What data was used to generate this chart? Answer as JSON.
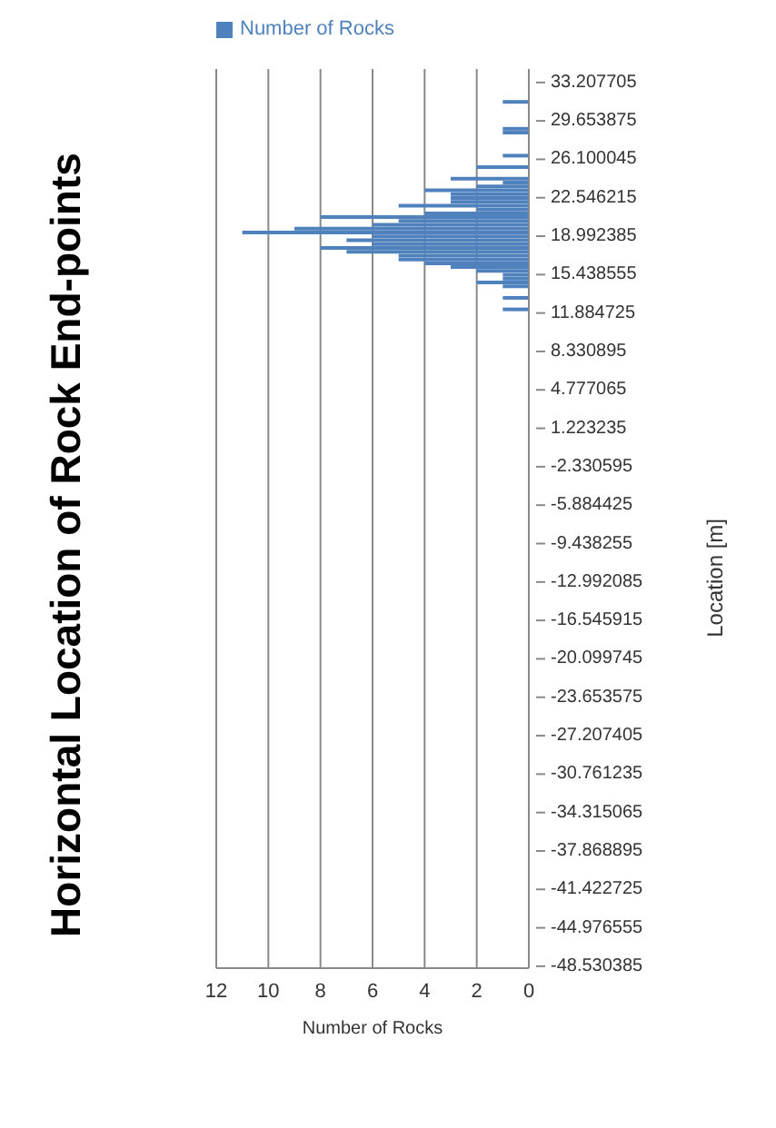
{
  "chart_data": {
    "type": "bar",
    "orientation": "horizontal",
    "title": "Horizontal Location of Rock End-points",
    "xlabel": "Number of Rocks",
    "ylabel": "Location [m]",
    "categories": [
      null,
      null,
      null,
      "33.207705",
      null,
      null,
      null,
      null,
      null,
      null,
      null,
      null,
      null,
      "29.653875",
      null,
      null,
      null,
      null,
      null,
      null,
      null,
      null,
      null,
      "26.100045",
      null,
      null,
      null,
      null,
      null,
      null,
      null,
      null,
      null,
      "22.546215",
      null,
      null,
      null,
      null,
      null,
      null,
      null,
      null,
      null,
      "18.992385",
      null,
      null,
      null,
      null,
      null,
      null,
      null,
      null,
      null,
      "15.438555",
      null,
      null,
      null,
      null,
      null,
      null,
      null,
      null,
      null,
      "11.884725",
      null,
      null,
      null,
      null,
      null,
      null,
      null,
      null,
      null,
      "8.330895",
      null,
      null,
      null,
      null,
      null,
      null,
      null,
      null,
      null,
      "4.777065",
      null,
      null,
      null,
      null,
      null,
      null,
      null,
      null,
      null,
      "1.223235",
      null,
      null,
      null,
      null,
      null,
      null,
      null,
      null,
      null,
      "-2.330595",
      null,
      null,
      null,
      null,
      null,
      null,
      null,
      null,
      null,
      "-5.884425",
      null,
      null,
      null,
      null,
      null,
      null,
      null,
      null,
      null,
      "-9.438255",
      null,
      null,
      null,
      null,
      null,
      null,
      null,
      null,
      null,
      "-12.992085",
      null,
      null,
      null,
      null,
      null,
      null,
      null,
      null,
      null,
      "-16.545915",
      null,
      null,
      null,
      null,
      null,
      null,
      null,
      null,
      null,
      "-20.099745",
      null,
      null,
      null,
      null,
      null,
      null,
      null,
      null,
      null,
      "-23.653575",
      null,
      null,
      null,
      null,
      null,
      null,
      null,
      null,
      null,
      "-27.207405",
      null,
      null,
      null,
      null,
      null,
      null,
      null,
      null,
      null,
      "-30.761235",
      null,
      null,
      null,
      null,
      null,
      null,
      null,
      null,
      null,
      "-34.315065",
      null,
      null,
      null,
      null,
      null,
      null,
      null,
      null,
      null,
      "-37.868895",
      null,
      null,
      null,
      null,
      null,
      null,
      null,
      null,
      null,
      "-41.422725",
      null,
      null,
      null,
      null,
      null,
      null,
      null,
      null,
      null,
      "-44.976555",
      null,
      null,
      null,
      null,
      null,
      null,
      null,
      null,
      null,
      "-48.530385"
    ],
    "series": [
      {
        "name": "Number of Rocks",
        "color": "#4f81bd",
        "values": [
          0,
          0,
          0,
          0,
          0,
          0,
          0,
          0,
          1,
          0,
          0,
          0,
          0,
          0,
          0,
          1,
          1,
          0,
          0,
          0,
          0,
          0,
          1,
          0,
          0,
          2,
          0,
          0,
          3,
          1,
          2,
          4,
          3,
          3,
          3,
          5,
          2,
          4,
          8,
          5,
          6,
          9,
          11,
          6,
          7,
          6,
          8,
          7,
          5,
          5,
          4,
          3,
          2,
          1,
          1,
          2,
          1,
          0,
          0,
          1,
          0,
          0,
          1,
          0,
          0,
          0,
          0,
          0,
          0,
          0,
          0,
          0,
          0,
          0,
          0,
          0,
          0,
          0,
          0,
          0,
          0,
          0,
          0,
          0,
          0,
          0,
          0,
          0,
          0,
          0,
          0,
          0,
          0,
          0,
          0,
          0,
          0,
          0,
          0,
          0,
          0,
          0,
          0,
          0,
          0,
          0,
          0,
          0,
          0,
          0,
          0,
          0,
          0,
          0,
          0,
          0,
          0,
          0,
          0,
          0,
          0,
          0,
          0,
          0,
          0,
          0,
          0,
          0,
          0,
          0,
          0,
          0,
          0,
          0,
          0,
          0,
          0,
          0,
          0,
          0,
          0,
          0,
          0,
          0,
          0,
          0,
          0,
          0,
          0,
          0,
          0,
          0,
          0,
          0,
          0,
          0,
          0,
          0,
          0,
          0,
          0,
          0,
          0,
          0,
          0,
          0,
          0,
          0,
          0,
          0,
          0,
          0,
          0,
          0,
          0,
          0,
          0,
          0,
          0,
          0,
          0,
          0,
          0,
          0,
          0,
          0,
          0,
          0,
          0,
          0,
          0,
          0,
          0,
          0,
          0,
          0,
          0,
          0,
          0,
          0,
          0,
          0,
          0,
          0,
          0,
          0,
          0,
          0,
          0,
          0,
          0,
          0,
          0,
          0,
          0,
          0,
          0,
          0,
          0,
          0,
          0,
          0,
          0,
          0,
          0,
          0,
          0,
          0,
          0,
          0,
          0,
          0,
          0,
          0
        ]
      }
    ],
    "xlim": [
      12,
      0
    ],
    "xticks": [
      12,
      10,
      8,
      6,
      4,
      2,
      0
    ],
    "grid": "x",
    "legend": "top left"
  }
}
